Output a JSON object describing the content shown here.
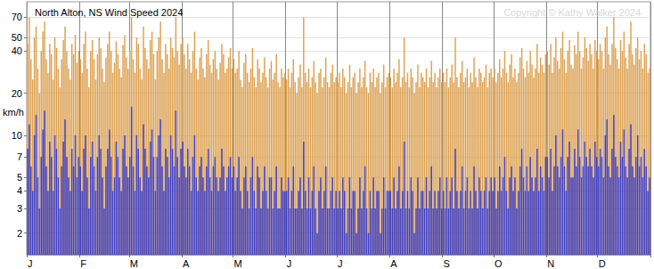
{
  "chart_data": {
    "type": "bar",
    "title": "North Alton, NS Wind Speed 2024",
    "annotations": [
      "Copyright © Kathy Walker 2024"
    ],
    "y_label": "km/h",
    "log": "y",
    "grid": true,
    "ylim": [
      1.4,
      90
    ],
    "yticks": [
      2,
      3,
      4,
      5,
      7,
      10,
      20,
      40,
      50,
      70
    ],
    "categories": [
      "J",
      null,
      null,
      null,
      null,
      null,
      null,
      null,
      null,
      null,
      null,
      null,
      null,
      null,
      null,
      null,
      null,
      null,
      null,
      null,
      null,
      null,
      null,
      null,
      null,
      null,
      null,
      null,
      null,
      null,
      null,
      "F",
      null,
      null,
      null,
      null,
      null,
      null,
      null,
      null,
      null,
      null,
      null,
      null,
      null,
      null,
      null,
      null,
      null,
      null,
      null,
      null,
      null,
      null,
      null,
      null,
      null,
      null,
      null,
      null,
      "M",
      null,
      null,
      null,
      null,
      null,
      null,
      null,
      null,
      null,
      null,
      null,
      null,
      null,
      null,
      null,
      null,
      null,
      null,
      null,
      null,
      null,
      null,
      null,
      null,
      null,
      null,
      null,
      null,
      null,
      null,
      "A",
      null,
      null,
      null,
      null,
      null,
      null,
      null,
      null,
      null,
      null,
      null,
      null,
      null,
      null,
      null,
      null,
      null,
      null,
      null,
      null,
      null,
      null,
      null,
      null,
      null,
      null,
      null,
      null,
      null,
      "M",
      null,
      null,
      null,
      null,
      null,
      null,
      null,
      null,
      null,
      null,
      null,
      null,
      null,
      null,
      null,
      null,
      null,
      null,
      null,
      null,
      null,
      null,
      null,
      null,
      null,
      null,
      null,
      null,
      null,
      null,
      "J",
      null,
      null,
      null,
      null,
      null,
      null,
      null,
      null,
      null,
      null,
      null,
      null,
      null,
      null,
      null,
      null,
      null,
      null,
      null,
      null,
      null,
      null,
      null,
      null,
      null,
      null,
      null,
      null,
      null,
      "J",
      null,
      null,
      null,
      null,
      null,
      null,
      null,
      null,
      null,
      null,
      null,
      null,
      null,
      null,
      null,
      null,
      null,
      null,
      null,
      null,
      null,
      null,
      null,
      null,
      null,
      null,
      null,
      null,
      null,
      null,
      "A",
      null,
      null,
      null,
      null,
      null,
      null,
      null,
      null,
      null,
      null,
      null,
      null,
      null,
      null,
      null,
      null,
      null,
      null,
      null,
      null,
      null,
      null,
      null,
      null,
      null,
      null,
      null,
      null,
      null,
      null,
      "S",
      null,
      null,
      null,
      null,
      null,
      null,
      null,
      null,
      null,
      null,
      null,
      null,
      null,
      null,
      null,
      null,
      null,
      null,
      null,
      null,
      null,
      null,
      null,
      null,
      null,
      null,
      null,
      null,
      null,
      "O",
      null,
      null,
      null,
      null,
      null,
      null,
      null,
      null,
      null,
      null,
      null,
      null,
      null,
      null,
      null,
      null,
      null,
      null,
      null,
      null,
      null,
      null,
      null,
      null,
      null,
      null,
      null,
      null,
      null,
      null,
      "N",
      null,
      null,
      null,
      null,
      null,
      null,
      null,
      null,
      null,
      null,
      null,
      null,
      null,
      null,
      null,
      null,
      null,
      null,
      null,
      null,
      null,
      null,
      null,
      null,
      null,
      null,
      null,
      null,
      null,
      "D",
      null,
      null,
      null,
      null,
      null,
      null,
      null,
      null,
      null,
      null,
      null,
      null,
      null,
      null,
      null,
      null,
      null,
      null,
      null,
      null,
      null,
      null,
      null,
      null,
      null,
      null,
      null,
      null,
      null,
      null
    ],
    "series": [
      {
        "color": "#dca050",
        "values": [
          45,
          70,
          35,
          25,
          50,
          60,
          30,
          20,
          40,
          55,
          65,
          35,
          28,
          45,
          38,
          25,
          50,
          42,
          30,
          22,
          35,
          48,
          60,
          40,
          30,
          25,
          45,
          38,
          52,
          33,
          40,
          35,
          28,
          45,
          55,
          30,
          22,
          40,
          48,
          35,
          25,
          38,
          50,
          42,
          30,
          24,
          36,
          45,
          55,
          40,
          28,
          33,
          47,
          38,
          30,
          26,
          44,
          52,
          36,
          30,
          40,
          70,
          35,
          28,
          50,
          45,
          30,
          25,
          60,
          42,
          35,
          30,
          48,
          55,
          38,
          25,
          40,
          50,
          65,
          35,
          28,
          45,
          38,
          30,
          50,
          42,
          36,
          70,
          40,
          32,
          45,
          50,
          38,
          30,
          45,
          35,
          28,
          40,
          55,
          30,
          25,
          36,
          42,
          30,
          26,
          38,
          48,
          32,
          28,
          35,
          40,
          30,
          25,
          33,
          45,
          38,
          28,
          30,
          36,
          42,
          30,
          35,
          28,
          30,
          40,
          25,
          22,
          33,
          38,
          28,
          24,
          30,
          42,
          26,
          22,
          35,
          30,
          24,
          28,
          36,
          26,
          22,
          30,
          34,
          25,
          28,
          38,
          24,
          22,
          30,
          26,
          28,
          25,
          30,
          22,
          28,
          35,
          24,
          20,
          26,
          32,
          22,
          70,
          28,
          24,
          30,
          22,
          26,
          34,
          24,
          20,
          28,
          30,
          22,
          26,
          36,
          24,
          22,
          28,
          32,
          24,
          26,
          24,
          28,
          22,
          30,
          26,
          20,
          24,
          32,
          22,
          26,
          28,
          20,
          24,
          30,
          22,
          26,
          34,
          22,
          20,
          28,
          24,
          30,
          22,
          26,
          28,
          20,
          24,
          32,
          22,
          26,
          28,
          26,
          22,
          30,
          24,
          28,
          35,
          22,
          26,
          50,
          24,
          28,
          22,
          30,
          26,
          20,
          24,
          32,
          22,
          28,
          26,
          24,
          30,
          22,
          26,
          34,
          24,
          28,
          22,
          26,
          30,
          24,
          28,
          24,
          30,
          22,
          26,
          32,
          24,
          50,
          26,
          22,
          28,
          34,
          24,
          26,
          30,
          22,
          28,
          24,
          36,
          26,
          22,
          30,
          28,
          24,
          26,
          32,
          22,
          28,
          30,
          26,
          30,
          24,
          28,
          35,
          26,
          30,
          40,
          28,
          24,
          32,
          38,
          26,
          30,
          24,
          28,
          36,
          42,
          30,
          26,
          34,
          28,
          40,
          32,
          26,
          30,
          45,
          28,
          36,
          32,
          28,
          38,
          40,
          32,
          45,
          28,
          36,
          50,
          34,
          30,
          42,
          55,
          35,
          28,
          40,
          48,
          32,
          30,
          44,
          38,
          55,
          40,
          30,
          36,
          50,
          42,
          34,
          45,
          38,
          30,
          48,
          40,
          35,
          45,
          40,
          30,
          50,
          60,
          38,
          32,
          45,
          70,
          42,
          35,
          30,
          48,
          40,
          55,
          36,
          30,
          45,
          65,
          38,
          32,
          42,
          50,
          35,
          40,
          30,
          45,
          38,
          28,
          30
        ]
      },
      {
        "color": "#3c3cc4",
        "values": [
          8,
          12,
          6,
          4,
          10,
          14,
          5,
          3,
          7,
          11,
          15,
          6,
          4,
          9,
          7,
          4,
          10,
          8,
          5,
          3,
          6,
          9,
          13,
          7,
          5,
          4,
          8,
          6,
          10,
          5,
          7,
          6,
          4,
          8,
          10,
          5,
          3,
          7,
          9,
          6,
          4,
          7,
          10,
          8,
          5,
          3,
          6,
          8,
          11,
          7,
          4,
          5,
          9,
          7,
          5,
          4,
          8,
          10,
          6,
          5,
          7,
          16,
          6,
          4,
          10,
          8,
          5,
          4,
          12,
          8,
          6,
          5,
          9,
          11,
          7,
          4,
          7,
          10,
          13,
          6,
          4,
          8,
          7,
          5,
          10,
          8,
          6,
          15,
          7,
          5,
          8,
          9,
          6,
          5,
          8,
          6,
          4,
          7,
          10,
          5,
          4,
          6,
          7,
          5,
          4,
          6,
          8,
          5,
          4,
          6,
          7,
          5,
          4,
          5,
          8,
          6,
          4,
          5,
          6,
          7,
          5,
          6,
          4,
          5,
          7,
          4,
          3,
          5,
          6,
          4,
          3,
          5,
          7,
          4,
          3,
          6,
          5,
          3,
          4,
          6,
          4,
          3,
          5,
          5,
          3,
          4,
          6,
          3,
          3,
          5,
          4,
          4,
          4,
          5,
          3,
          4,
          6,
          3,
          3,
          4,
          5,
          3,
          9,
          4,
          3,
          5,
          3,
          4,
          6,
          3,
          2,
          4,
          5,
          3,
          4,
          6,
          3,
          3,
          4,
          5,
          3,
          4,
          3,
          4,
          3,
          5,
          4,
          2,
          3,
          5,
          3,
          4,
          4,
          2,
          3,
          5,
          3,
          4,
          6,
          3,
          2,
          4,
          3,
          5,
          3,
          4,
          4,
          2,
          3,
          5,
          3,
          4,
          4,
          4,
          3,
          5,
          3,
          4,
          6,
          3,
          4,
          9,
          3,
          4,
          3,
          5,
          4,
          2,
          3,
          5,
          3,
          4,
          4,
          3,
          5,
          3,
          4,
          6,
          3,
          4,
          3,
          4,
          5,
          3,
          4,
          3,
          5,
          3,
          4,
          5,
          3,
          8,
          4,
          3,
          4,
          6,
          3,
          4,
          5,
          3,
          4,
          3,
          6,
          4,
          3,
          5,
          4,
          3,
          4,
          5,
          3,
          4,
          5,
          4,
          5,
          3,
          4,
          6,
          4,
          5,
          7,
          4,
          3,
          5,
          6,
          4,
          5,
          3,
          4,
          6,
          8,
          5,
          4,
          6,
          4,
          7,
          5,
          4,
          5,
          8,
          4,
          6,
          5,
          4,
          7,
          7,
          5,
          8,
          4,
          6,
          10,
          6,
          5,
          7,
          11,
          6,
          4,
          7,
          9,
          5,
          5,
          8,
          6,
          11,
          7,
          5,
          6,
          9,
          7,
          6,
          8,
          6,
          5,
          9,
          7,
          6,
          8,
          7,
          5,
          10,
          13,
          6,
          5,
          8,
          14,
          7,
          6,
          5,
          9,
          7,
          11,
          6,
          5,
          8,
          12,
          6,
          5,
          7,
          10,
          6,
          7,
          5,
          8,
          6,
          4,
          5
        ]
      }
    ]
  }
}
